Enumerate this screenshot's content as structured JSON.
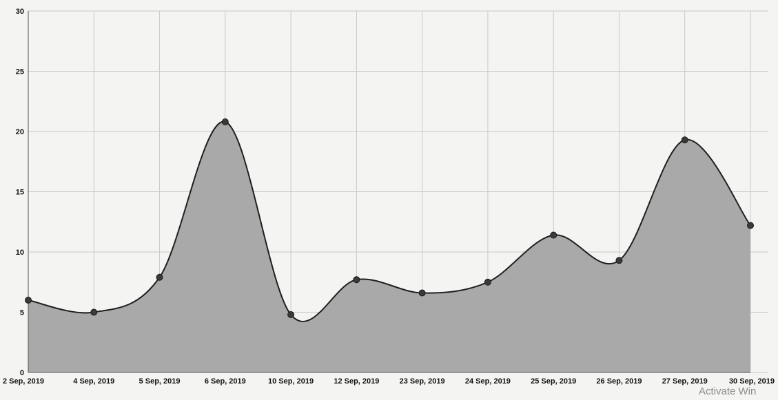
{
  "chart_data": {
    "type": "area",
    "title": "",
    "xlabel": "",
    "ylabel": "",
    "categories": [
      "2 Sep, 2019",
      "4 Sep, 2019",
      "5 Sep, 2019",
      "6 Sep, 2019",
      "10 Sep, 2019",
      "12 Sep, 2019",
      "23 Sep, 2019",
      "24 Sep, 2019",
      "25 Sep, 2019",
      "26 Sep, 2019",
      "27 Sep, 2019",
      "30 Sep, 2019"
    ],
    "values": [
      6.0,
      5.0,
      7.9,
      20.8,
      4.8,
      7.7,
      6.6,
      7.5,
      11.4,
      9.3,
      19.3,
      12.2
    ],
    "ylim": [
      0,
      30
    ],
    "yticks": [
      0,
      5,
      10,
      15,
      20,
      25,
      30
    ],
    "grid": true,
    "legend": "none",
    "colors": {
      "line": "#1f1f1f",
      "fill": "#a9a9a9",
      "marker": "#3a3a3a",
      "grid": "#c8c8c8"
    }
  },
  "overlay": {
    "watermark_text": "Activate Win"
  }
}
